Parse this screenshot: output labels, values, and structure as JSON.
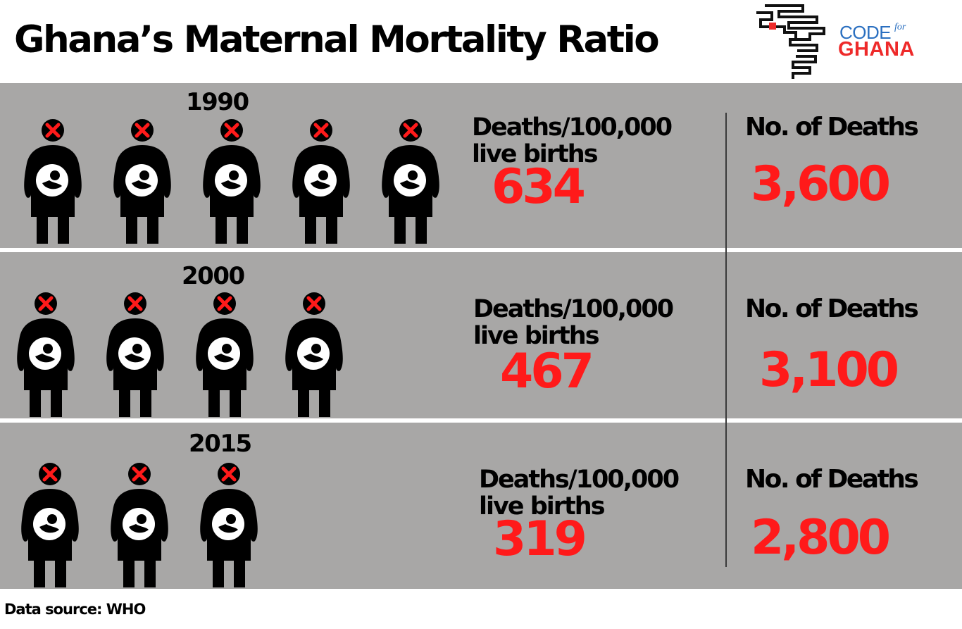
{
  "title": "Ghana’s Maternal Mortality Ratio",
  "logo": {
    "line1": "CODE",
    "line1_small": "for",
    "line2": "GHANA"
  },
  "source": "Data source: WHO",
  "colors": {
    "band": "#a8a7a6",
    "value": "#ff1a1a",
    "icon": "#000000",
    "mark": "#ff1a1a",
    "logo_blue": "#2a6fc0",
    "logo_red": "#ee2a2a"
  },
  "icon": "pregnant-woman-icon",
  "chart_data": {
    "type": "table",
    "title": "Ghana’s Maternal Mortality Ratio",
    "columns": [
      "Deaths/100,000 live births",
      "No. of Deaths"
    ],
    "rows": [
      {
        "year": "1990",
        "unit_line1": "Deaths/100,000",
        "unit_line2": "live births",
        "ratio": "634",
        "deaths_label": "No. of Deaths",
        "deaths": "3,600",
        "icons": 5
      },
      {
        "year": "2000",
        "unit_line1": "Deaths/100,000",
        "unit_line2": "live births",
        "ratio": "467",
        "deaths_label": "No. of Deaths",
        "deaths": "3,100",
        "icons": 4
      },
      {
        "year": "2015",
        "unit_line1": "Deaths/100,000",
        "unit_line2": "live births",
        "ratio": "319",
        "deaths_label": "No. of Deaths",
        "deaths": "2,800",
        "icons": 3
      }
    ]
  }
}
